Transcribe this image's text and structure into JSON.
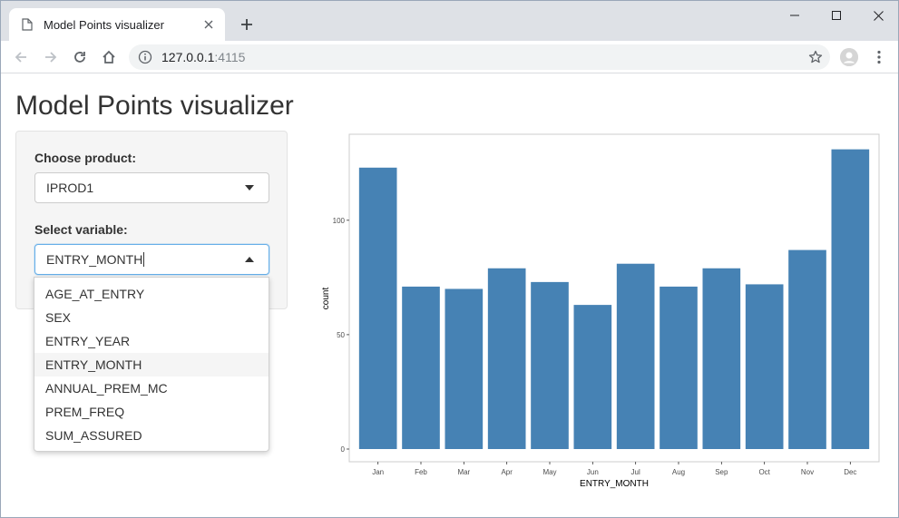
{
  "browser": {
    "tab_title": "Model Points visualizer",
    "url_host": "127.0.0.1",
    "url_port": ":4115"
  },
  "page": {
    "title": "Model Points visualizer",
    "product_label": "Choose product:",
    "product_value": "IPROD1",
    "variable_label": "Select variable:",
    "variable_value": "ENTRY_MONTH",
    "variable_options": [
      "AGE_AT_ENTRY",
      "SEX",
      "ENTRY_YEAR",
      "ENTRY_MONTH",
      "ANNUAL_PREM_MC",
      "PREM_FREQ",
      "SUM_ASSURED"
    ],
    "highlighted_option": "ENTRY_MONTH"
  },
  "chart_data": {
    "type": "bar",
    "categories": [
      "Jan",
      "Feb",
      "Mar",
      "Apr",
      "May",
      "Jun",
      "Jul",
      "Aug",
      "Sep",
      "Oct",
      "Nov",
      "Dec"
    ],
    "values": [
      123,
      71,
      70,
      79,
      73,
      63,
      81,
      71,
      79,
      72,
      87,
      131
    ],
    "xlabel": "ENTRY_MONTH",
    "ylabel": "count",
    "yticks": [
      0,
      50,
      100
    ],
    "ylim": [
      0,
      136
    ],
    "bar_color": "#4682b4",
    "grid": false
  }
}
